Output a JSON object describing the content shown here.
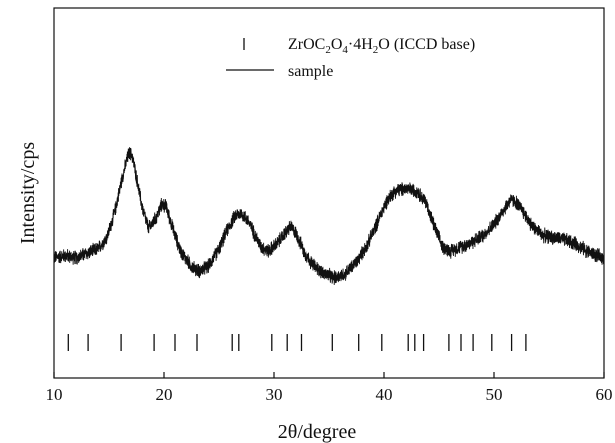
{
  "chart_data": {
    "type": "line",
    "xlabel": "2θ/degree",
    "ylabel": "Intensity/cps",
    "xlim": [
      10,
      60
    ],
    "ylim": [
      0,
      100
    ],
    "y_ticks_shown": false,
    "grid": false,
    "x_ticks": [
      10,
      20,
      30,
      40,
      50,
      60
    ],
    "x_tick_labels": [
      "10",
      "20",
      "30",
      "40",
      "50",
      "60"
    ],
    "legend": {
      "placement": "top-center",
      "entries": [
        {
          "label_base": "ZrOC",
          "sub1": "2",
          "mid1": "O",
          "sub2": "4",
          "mid2": "·4H",
          "sub3": "2",
          "tail": "O (ICCD base)",
          "marker": "tick"
        },
        {
          "label": "sample",
          "marker": "line"
        }
      ]
    },
    "series": [
      {
        "name": "sample",
        "style": "noisy-line",
        "noise_amplitude": 2.5,
        "points": [
          [
            10.0,
            27
          ],
          [
            11.0,
            28
          ],
          [
            12.0,
            27
          ],
          [
            13.0,
            29
          ],
          [
            14.0,
            31
          ],
          [
            14.8,
            36
          ],
          [
            15.5,
            47
          ],
          [
            16.2,
            63
          ],
          [
            16.8,
            74
          ],
          [
            17.1,
            73
          ],
          [
            17.5,
            63
          ],
          [
            18.0,
            50
          ],
          [
            18.6,
            40
          ],
          [
            19.3,
            45
          ],
          [
            19.8,
            51
          ],
          [
            20.2,
            50
          ],
          [
            20.8,
            40
          ],
          [
            21.5,
            30
          ],
          [
            22.5,
            23
          ],
          [
            23.2,
            21
          ],
          [
            24.0,
            23
          ],
          [
            25.0,
            31
          ],
          [
            25.8,
            40
          ],
          [
            26.5,
            46
          ],
          [
            27.0,
            47
          ],
          [
            27.6,
            44
          ],
          [
            28.2,
            38
          ],
          [
            28.8,
            32
          ],
          [
            29.5,
            30
          ],
          [
            30.2,
            33
          ],
          [
            31.0,
            38
          ],
          [
            31.5,
            41
          ],
          [
            32.0,
            38
          ],
          [
            32.8,
            29
          ],
          [
            33.5,
            24
          ],
          [
            34.5,
            20
          ],
          [
            35.5,
            18
          ],
          [
            36.5,
            20
          ],
          [
            37.5,
            25
          ],
          [
            38.5,
            33
          ],
          [
            39.5,
            44
          ],
          [
            40.3,
            53
          ],
          [
            41.0,
            57
          ],
          [
            42.0,
            58
          ],
          [
            43.0,
            57
          ],
          [
            43.8,
            52
          ],
          [
            44.5,
            42
          ],
          [
            45.3,
            32
          ],
          [
            46.0,
            30
          ],
          [
            47.0,
            32
          ],
          [
            48.0,
            34
          ],
          [
            49.0,
            37
          ],
          [
            50.0,
            42
          ],
          [
            50.8,
            48
          ],
          [
            51.5,
            53
          ],
          [
            52.0,
            52
          ],
          [
            52.6,
            48
          ],
          [
            53.5,
            41
          ],
          [
            54.5,
            37
          ],
          [
            55.5,
            36
          ],
          [
            56.5,
            35
          ],
          [
            57.5,
            33
          ],
          [
            58.5,
            30
          ],
          [
            59.3,
            28
          ],
          [
            60.0,
            27
          ]
        ]
      },
      {
        "name": "ZrOC2O4·4H2O (ICCD base)",
        "style": "stick-markers",
        "positions": [
          11.3,
          13.1,
          16.1,
          19.1,
          21.0,
          23.0,
          26.2,
          26.8,
          29.8,
          31.2,
          32.5,
          35.3,
          37.7,
          39.8,
          42.2,
          42.8,
          43.6,
          45.9,
          47.0,
          48.1,
          49.8,
          51.6,
          52.9
        ]
      }
    ]
  }
}
